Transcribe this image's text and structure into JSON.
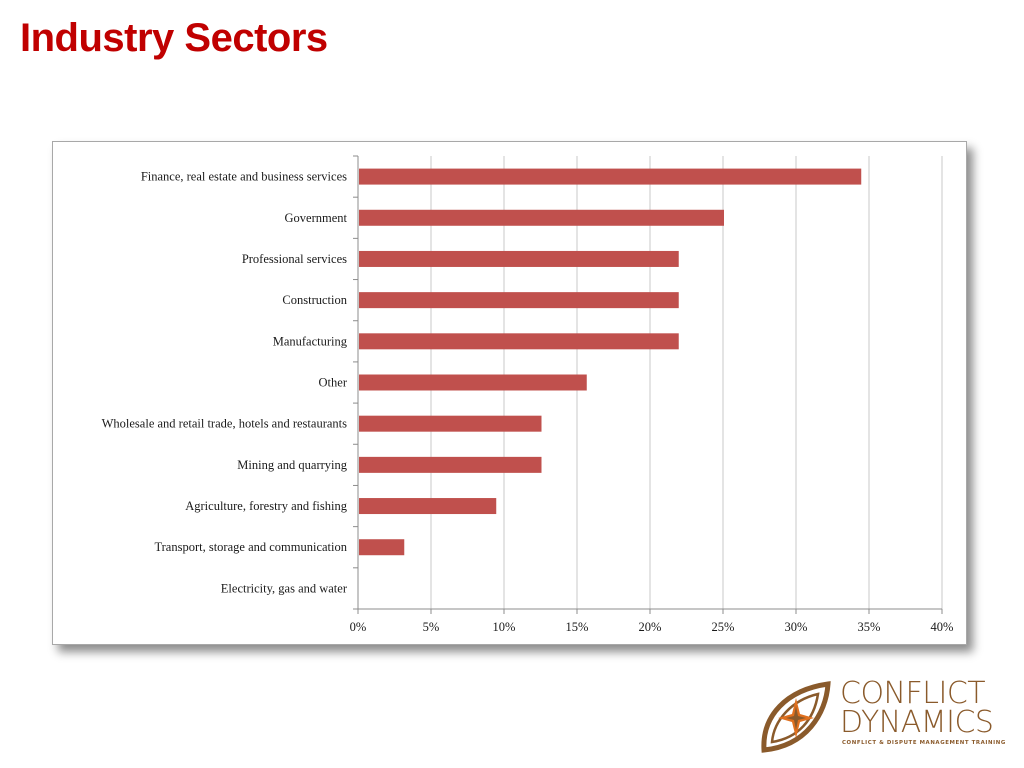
{
  "slide": {
    "title": "Industry Sectors",
    "title_color": "#c00000"
  },
  "chart_data": {
    "type": "bar",
    "orientation": "horizontal",
    "title": "",
    "xlabel": "",
    "ylabel": "",
    "categories": [
      "Finance, real estate and business services",
      "Government",
      "Professional services",
      "Construction",
      "Manufacturing",
      "Other",
      "Wholesale and retail trade, hotels and restaurants",
      "Mining and quarrying",
      "Agriculture, forestry and fishing",
      "Transport, storage and communication",
      "Electricity, gas and water"
    ],
    "values": [
      34.4,
      25.0,
      21.9,
      21.9,
      21.9,
      15.6,
      12.5,
      12.5,
      9.4,
      3.1,
      0
    ],
    "xlim": [
      0,
      40
    ],
    "xticks": [
      "0%",
      "5%",
      "10%",
      "15%",
      "20%",
      "25%",
      "30%",
      "35%",
      "40%"
    ],
    "grid": "vertical",
    "legend": "none",
    "bar_color": "#c0504d",
    "grid_color": "#c8c8c8"
  },
  "logo": {
    "line1": "CONFLICT",
    "line2": "DYNAMICS",
    "tagline": "CONFLICT & DISPUTE MANAGEMENT TRAINING",
    "color": "#8a5a2b",
    "accent": "#e0701f",
    "icon": "compass-leaf-icon"
  }
}
